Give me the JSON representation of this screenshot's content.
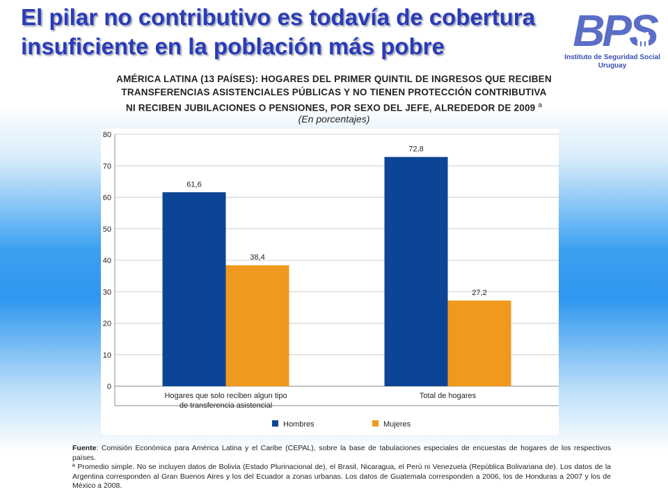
{
  "slide": {
    "title": "El pilar no contributivo es todavía de cobertura insuficiente en la población más pobre"
  },
  "logo": {
    "mark": "BPS",
    "subtitle_line1": "Instituto de Seguridad Social",
    "subtitle_line2": "Uruguay",
    "color": "#5a6ec8"
  },
  "chart_data": {
    "type": "bar",
    "title_lines": [
      "AMÉRICA LATINA (13 PAÍSES): HOGARES DEL PRIMER QUINTIL DE INGRESOS QUE RECIBEN",
      "TRANSFERENCIAS ASISTENCIALES PÚBLICAS Y NO TIENEN PROTECCIÓN CONTRIBUTIVA",
      "NI RECIBEN JUBILACIONES O PENSIONES, POR SEXO DEL JEFE, ALREDEDOR DE 2009"
    ],
    "title_marker": "a",
    "subtitle": "(En porcentajes)",
    "categories": [
      [
        "Hogares que solo reciben algun tipo",
        "de transferencia asistencial"
      ],
      [
        "Total de hogares"
      ]
    ],
    "series": [
      {
        "name": "Hombres",
        "color": "#0c4596",
        "values": [
          61.6,
          72.8
        ],
        "labels": [
          "61,6",
          "72,8"
        ]
      },
      {
        "name": "Mujeres",
        "color": "#f0991f",
        "values": [
          38.4,
          27.2
        ],
        "labels": [
          "38,4",
          "27,2"
        ]
      }
    ],
    "ylim": [
      0,
      80
    ],
    "yticks": [
      0,
      10,
      20,
      30,
      40,
      50,
      60,
      70,
      80
    ],
    "grid": true,
    "legend_position": "bottom"
  },
  "footnote": {
    "source_label": "Fuente",
    "source_text": ": Comisión Económica para América Latina y el Caribe (CEPAL), sobre la base de tabulaciones especiales de encuestas de hogares de los respectivos países.",
    "note_text": "ª Promedio simple. No se incluyen datos de Bolivia (Estado Plurinacional de), el Brasil, Nicaragua, el Perú ni Venezuela (República Bolivariana de). Los datos de la Argentina corresponden al Gran Buenos Aires y los del Ecuador a zonas urbanas. Los datos de Guatemala corresponden a 2006, los de Honduras a 2007 y los de México a 2008."
  }
}
